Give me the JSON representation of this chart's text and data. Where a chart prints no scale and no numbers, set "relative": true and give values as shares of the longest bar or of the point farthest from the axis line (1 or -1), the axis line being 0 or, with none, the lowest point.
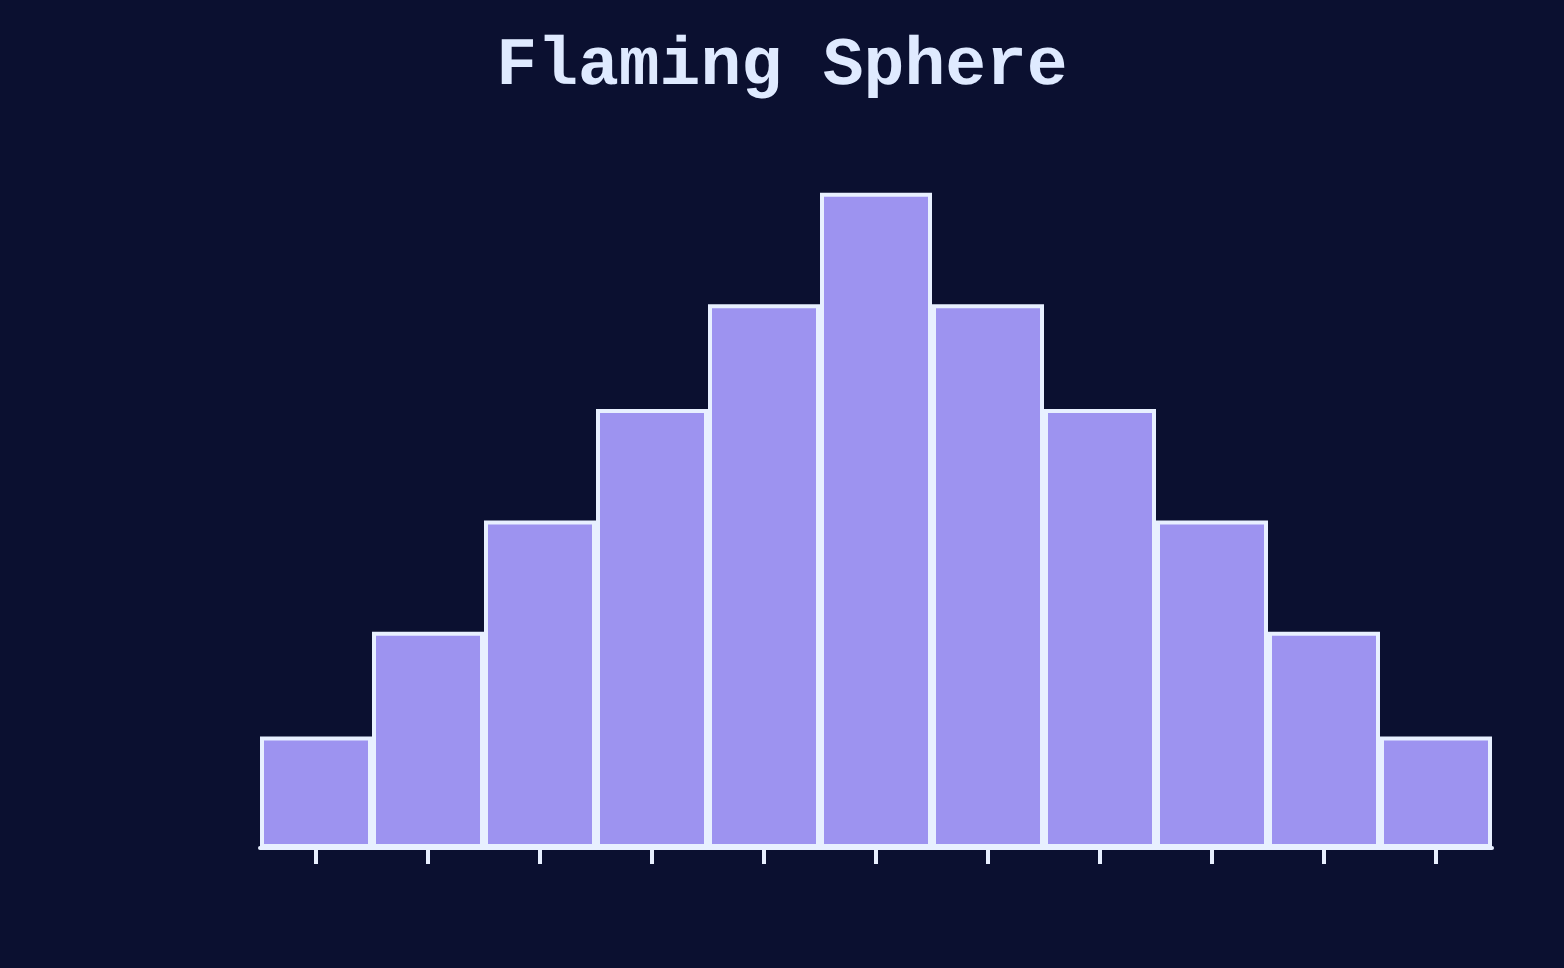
{
  "chart_data": {
    "type": "bar",
    "title": "Flaming Sphere",
    "relative": true,
    "color": "#9d93f0",
    "categories": [
      null,
      null,
      null,
      null,
      null,
      null,
      null,
      null,
      null,
      null,
      null
    ],
    "values": [
      0.17,
      0.33,
      0.5,
      0.67,
      0.83,
      1,
      0.83,
      0.67,
      0.5,
      0.33,
      0.17
    ]
  }
}
